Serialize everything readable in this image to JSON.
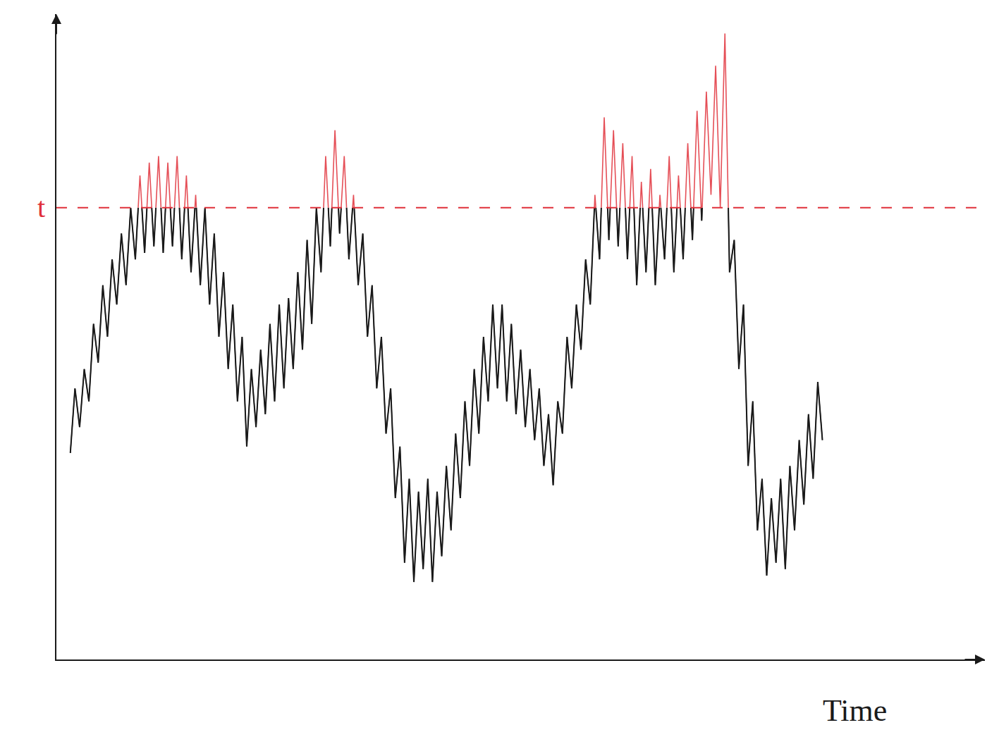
{
  "chart_data": {
    "type": "line",
    "x_label": "Time",
    "xlim": [
      0,
      100
    ],
    "ylim": [
      0,
      100
    ],
    "tick_labels": false,
    "grid": false,
    "x": [
      1.5,
      2,
      2.5,
      3,
      3.5,
      4,
      4.5,
      5,
      5.5,
      6,
      6.5,
      7,
      7.5,
      8,
      8.5,
      9,
      9.5,
      10,
      10.5,
      11,
      11.5,
      12,
      12.5,
      13,
      13.5,
      14,
      14.5,
      15,
      15.5,
      16,
      16.5,
      17,
      17.5,
      18,
      18.5,
      19,
      19.5,
      20,
      20.5,
      21,
      21.5,
      22,
      22.5,
      23,
      23.5,
      24,
      24.5,
      25,
      25.5,
      26,
      26.5,
      27,
      27.5,
      28,
      28.5,
      29,
      29.5,
      30,
      30.5,
      31,
      31.5,
      32,
      32.5,
      33,
      33.5,
      34,
      34.5,
      35,
      35.5,
      36,
      36.5,
      37,
      37.5,
      38,
      38.5,
      39,
      39.5,
      40,
      40.5,
      41,
      41.5,
      42,
      42.5,
      43,
      43.5,
      44,
      44.5,
      45,
      45.5,
      46,
      46.5,
      47,
      47.5,
      48,
      48.5,
      49,
      49.5,
      50,
      50.5,
      51,
      51.5,
      52,
      52.5,
      53,
      53.5,
      54,
      54.5,
      55,
      55.5,
      56,
      56.5,
      57,
      57.5,
      58,
      58.5,
      59,
      59.5,
      60,
      60.5,
      61,
      61.5,
      62,
      62.5,
      63,
      63.5,
      64,
      64.5,
      65,
      65.5,
      66,
      66.5,
      67,
      67.5,
      68,
      68.5,
      69,
      69.5,
      70,
      70.5,
      71,
      71.5,
      72,
      72.5,
      73,
      73.5,
      74,
      74.5,
      75,
      75.5,
      76,
      76.5,
      77,
      77.5,
      78,
      78.5,
      79,
      79.5,
      80,
      80.5,
      81,
      81.5,
      82,
      82.5
    ],
    "series": [
      {
        "color": "#1a1a1a",
        "line_style": "solid",
        "values": [
          32,
          42,
          36,
          45,
          40,
          52,
          46,
          58,
          50,
          62,
          55,
          66,
          58,
          70,
          62,
          75,
          63,
          77,
          64,
          78,
          63,
          77,
          64,
          78,
          62,
          75,
          60,
          72,
          58,
          70,
          55,
          66,
          50,
          60,
          45,
          55,
          40,
          50,
          33,
          45,
          36,
          48,
          38,
          52,
          40,
          55,
          42,
          56,
          45,
          60,
          48,
          65,
          52,
          70,
          60,
          78,
          64,
          82,
          66,
          78,
          62,
          72,
          58,
          66,
          50,
          58,
          42,
          50,
          35,
          42,
          25,
          33,
          15,
          28,
          12,
          26,
          14,
          28,
          12,
          26,
          16,
          30,
          20,
          35,
          25,
          40,
          30,
          45,
          35,
          50,
          40,
          55,
          42,
          55,
          40,
          52,
          38,
          48,
          36,
          45,
          34,
          42,
          30,
          38,
          27,
          40,
          35,
          50,
          42,
          55,
          48,
          62,
          55,
          72,
          62,
          84,
          65,
          82,
          64,
          80,
          62,
          78,
          58,
          74,
          60,
          76,
          58,
          72,
          62,
          78,
          60,
          75,
          62,
          80,
          65,
          85,
          68,
          88,
          72,
          92,
          70,
          97,
          60,
          65,
          45,
          55,
          30,
          40,
          20,
          28,
          13,
          25,
          15,
          28,
          14,
          30,
          20,
          34,
          24,
          38,
          28,
          43,
          34
        ]
      }
    ],
    "threshold": {
      "value": 70,
      "label": "t",
      "color": "#e0303a",
      "line_style": "dashed"
    }
  }
}
